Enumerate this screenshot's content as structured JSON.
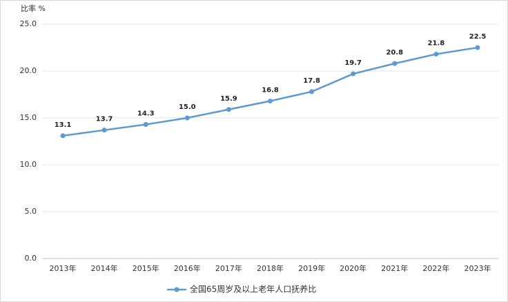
{
  "chart_data": {
    "type": "line",
    "y_label": "比率 %",
    "categories": [
      "2013年",
      "2014年",
      "2015年",
      "2016年",
      "2017年",
      "2018年",
      "2019年",
      "2020年",
      "2021年",
      "2022年",
      "2023年"
    ],
    "series": [
      {
        "name": "全国65周岁及以上老年人口抚养比",
        "color": "#5b9bd5",
        "values": [
          13.1,
          13.7,
          14.3,
          15.0,
          15.9,
          16.8,
          17.8,
          19.7,
          20.8,
          21.8,
          22.5
        ],
        "value_labels": [
          "13.1",
          "13.7",
          "14.3",
          "15.0",
          "15.9",
          "16.8",
          "17.8",
          "19.7",
          "20.8",
          "21.8",
          "22.5"
        ]
      }
    ],
    "ylim": [
      0,
      25
    ],
    "yticks": [
      {
        "value": 0,
        "label": "0.0"
      },
      {
        "value": 5,
        "label": "5.0"
      },
      {
        "value": 10,
        "label": "10.0"
      },
      {
        "value": 15,
        "label": "15.0"
      },
      {
        "value": 20,
        "label": "20.0"
      },
      {
        "value": 25,
        "label": "25.0"
      }
    ],
    "grid": true
  }
}
